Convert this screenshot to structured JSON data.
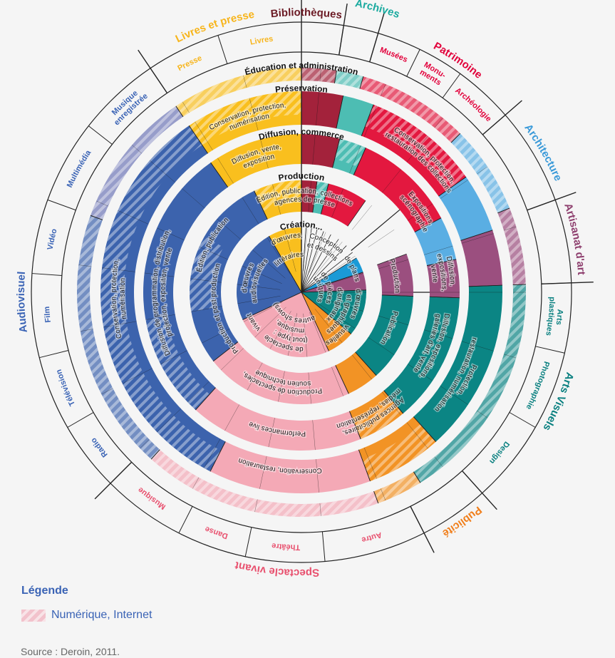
{
  "colors": {
    "lp": "#f9bf1e",
    "bib": "#a3223b",
    "arc": "#4dbdb3",
    "pat": "#e3183f",
    "archi": "#5aaee3",
    "art": "#9b4f7f",
    "av": "#0b8584",
    "pub": "#f29325",
    "sv": "#f4a9b6",
    "aud": "#3c63ad",
    "me": "#6f78b8",
    "crea_blue": "#1a9ad6",
    "background": "#f5f5f5"
  },
  "rings": {
    "education": "Éducation et administration",
    "preservation": "Préservation",
    "diffusion": "Diffusion, commerce",
    "production": "Production",
    "creation": "Création..."
  },
  "domains": [
    {
      "key": "lp",
      "name": "Livres et presse",
      "color": "#f7b51c"
    },
    {
      "key": "bib",
      "name": "Bibliothèques",
      "color": "#6b1a24"
    },
    {
      "key": "arc",
      "name": "Archives",
      "color": "#1aaa9f"
    },
    {
      "key": "pat",
      "name": "Patrimoine",
      "color": "#e2003b"
    },
    {
      "key": "archi",
      "name": "Architecture",
      "color": "#3a9ad9"
    },
    {
      "key": "art",
      "name": "Artisanat d'art",
      "color": "#8e3f6e"
    },
    {
      "key": "av",
      "name": "Arts Visuels",
      "color": "#0a8080"
    },
    {
      "key": "pub",
      "name": "Publicité",
      "color": "#f07e1a"
    },
    {
      "key": "sv",
      "name": "Spectacle vivant",
      "color": "#e8506e"
    },
    {
      "key": "aud",
      "name": "Audiovisuel",
      "color": "#3a63b5"
    }
  ],
  "subdomains": [
    {
      "color": "#f7b51c",
      "lines": [
        "Livres"
      ]
    },
    {
      "color": "#6b1a24",
      "lines": []
    },
    {
      "color": "#1aaa9f",
      "lines": []
    },
    {
      "color": "#e2003b",
      "lines": [
        "Musées"
      ]
    },
    {
      "color": "#e2003b",
      "lines": [
        "Monu-",
        "ments"
      ]
    },
    {
      "color": "#e2003b",
      "lines": [
        "Archéologie"
      ]
    },
    {
      "color": "#3a9ad9",
      "lines": []
    },
    {
      "color": "#8e3f6e",
      "lines": []
    },
    {
      "color": "#0a8080",
      "lines": [
        "Arts",
        "plastiques"
      ]
    },
    {
      "color": "#0a8080",
      "lines": [
        "Photographie"
      ]
    },
    {
      "color": "#0a8080",
      "lines": [
        "Design"
      ]
    },
    {
      "color": "#f07e1a",
      "lines": []
    },
    {
      "color": "#e8506e",
      "lines": [
        "Autre"
      ]
    },
    {
      "color": "#e8506e",
      "lines": [
        "Théâtre"
      ]
    },
    {
      "color": "#e8506e",
      "lines": [
        "Danse"
      ]
    },
    {
      "color": "#e8506e",
      "lines": [
        "Musique"
      ]
    },
    {
      "color": "#3a63b5",
      "lines": [
        "Radio"
      ]
    },
    {
      "color": "#3a63b5",
      "lines": [
        "Télévision"
      ]
    },
    {
      "color": "#3a63b5",
      "lines": [
        "Film"
      ]
    },
    {
      "color": "#3a63b5",
      "lines": [
        "Vidéo"
      ]
    },
    {
      "color": "#3a63b5",
      "lines": [
        "Multimédia"
      ]
    },
    {
      "color": "#3a63b5",
      "lines": [
        "Musique",
        "enregistrée"
      ]
    },
    {
      "color": "#f7b51c",
      "lines": [
        "Presse"
      ]
    }
  ],
  "segments": {
    "preservation": [
      {
        "lines": [
          "Conservation, protection,",
          "numérisation"
        ]
      },
      {
        "lines": [
          "Conservation, protection,",
          "restauration des collections"
        ]
      },
      {
        "lines": [
          "Protection,",
          "restauration, numérisation"
        ]
      },
      {
        "lines": [
          "Conservation, restauration"
        ]
      },
      {
        "lines": [
          "Conservation, protection,",
          "numérisation"
        ]
      }
    ],
    "diffusion": [
      {
        "lines": [
          "Diffusion, vente,",
          "exposition"
        ]
      },
      {
        "lines": [
          "Expositions,",
          "scénographie"
        ]
      },
      {
        "lines": [
          "Diffusion,",
          "expositions,",
          "vente"
        ]
      },
      {
        "lines": [
          "Diffusion, expositions,",
          "galeries d'art, vente"
        ]
      },
      {
        "lines": [
          "Agences publicitaires,",
          "médias, représentation"
        ]
      },
      {
        "lines": [
          "Performances live"
        ]
      },
      {
        "lines": [
          "Diffusion de programmation, distribution,",
          "projection, exposition, vente"
        ]
      }
    ],
    "production": [
      {
        "lines": [
          "Édition, publication, collections",
          "agences de presse"
        ]
      },
      {
        "lines": [
          "Production"
        ]
      },
      {
        "lines": [
          "Publication"
        ]
      },
      {
        "lines": [
          "Production de spectacles,",
          "soutien technique"
        ]
      },
      {
        "lines": [
          "Production et post-production"
        ]
      },
      {
        "lines": [
          "Édition, publication"
        ]
      }
    ],
    "creation": [
      {
        "lines": [
          "d'œuvres,",
          "littéraires"
        ]
      },
      {
        "lines": [
          "Conception",
          "et dessins"
        ]
      },
      {
        "lines": [
          "de plans"
        ]
      },
      {
        "lines": [
          "de pièces",
          "uniques"
        ]
      },
      {
        "lines": [
          "d'œuvres visuelles",
          "et graphiques"
        ]
      },
      {
        "lines": [
          "d'originaux"
        ]
      },
      {
        "lines": [
          "de spectacle vivant",
          "(tout type : musique, autres shows)"
        ]
      },
      {
        "lines": [
          "d'œuvres",
          "audiovisuelles"
        ]
      }
    ]
  },
  "legend": {
    "title": "Légende",
    "item": "Numérique, Internet"
  },
  "source": "Source : Deroin, 2011."
}
